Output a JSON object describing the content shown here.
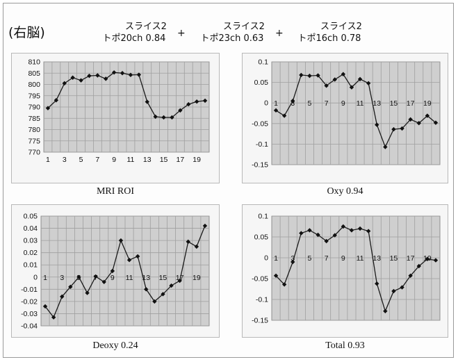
{
  "header": {
    "hemisphere": "(右脳)",
    "combos": [
      {
        "line1": "スライス2",
        "line2": "トポ20ch 0.84"
      },
      {
        "line1": "スライス2",
        "line2": "トポ23ch 0.63"
      },
      {
        "line1": "スライス2",
        "line2": "トポ16ch 0.78"
      }
    ],
    "plus": "+"
  },
  "chart_data": [
    {
      "type": "line",
      "title": "MRI ROI",
      "x": [
        1,
        2,
        3,
        4,
        5,
        6,
        7,
        8,
        9,
        10,
        11,
        12,
        13,
        14,
        15,
        16,
        17,
        18,
        19,
        20
      ],
      "values": [
        789.5,
        793,
        800.5,
        803,
        801.8,
        803.8,
        804,
        802.5,
        805.3,
        805,
        804.2,
        804.3,
        792.3,
        785.7,
        785.4,
        785.4,
        788.5,
        791.2,
        792.4,
        792.8
      ],
      "ylim": [
        770,
        810
      ],
      "yticks": [
        770,
        775,
        780,
        785,
        790,
        795,
        800,
        805,
        810
      ],
      "xticks": [
        1,
        3,
        5,
        7,
        9,
        11,
        13,
        15,
        17,
        19
      ],
      "xtick_position": "bottom",
      "grid": true
    },
    {
      "type": "line",
      "title": "Oxy 0.94",
      "x": [
        1,
        2,
        3,
        4,
        5,
        6,
        7,
        8,
        9,
        10,
        11,
        12,
        13,
        14,
        15,
        16,
        17,
        18,
        19,
        20
      ],
      "values": [
        -0.018,
        -0.031,
        0.005,
        0.068,
        0.066,
        0.067,
        0.042,
        0.057,
        0.07,
        0.038,
        0.058,
        0.048,
        -0.053,
        -0.107,
        -0.064,
        -0.062,
        -0.04,
        -0.049,
        -0.031,
        -0.048
      ],
      "ylim": [
        -0.15,
        0.1
      ],
      "yticks": [
        -0.15,
        -0.1,
        -0.05,
        0,
        0.05,
        0.1
      ],
      "xticks": [
        1,
        3,
        5,
        7,
        9,
        11,
        13,
        15,
        17,
        19
      ],
      "xtick_position": "zero",
      "grid": true
    },
    {
      "type": "line",
      "title": "Deoxy  0.24",
      "x": [
        1,
        2,
        3,
        4,
        5,
        6,
        7,
        8,
        9,
        10,
        11,
        12,
        13,
        14,
        15,
        16,
        17,
        18,
        19,
        20
      ],
      "values": [
        -0.024,
        -0.033,
        -0.016,
        -0.008,
        0,
        -0.013,
        0.0005,
        -0.004,
        0.005,
        0.03,
        0.014,
        0.017,
        -0.01,
        -0.02,
        -0.014,
        -0.007,
        -0.003,
        0.029,
        0.025,
        0.042
      ],
      "ylim": [
        -0.04,
        0.05
      ],
      "yticks": [
        -0.04,
        -0.03,
        -0.02,
        -0.01,
        0,
        0.01,
        0.02,
        0.03,
        0.04,
        0.05
      ],
      "xticks": [
        1,
        3,
        5,
        7,
        9,
        11,
        13,
        15,
        17,
        19
      ],
      "xtick_position": "zero",
      "grid": true
    },
    {
      "type": "line",
      "title": "Total 0.93",
      "x": [
        1,
        2,
        3,
        4,
        5,
        6,
        7,
        8,
        9,
        10,
        11,
        12,
        13,
        14,
        15,
        16,
        17,
        18,
        19,
        20
      ],
      "values": [
        -0.043,
        -0.064,
        -0.01,
        0.059,
        0.066,
        0.055,
        0.04,
        0.054,
        0.075,
        0.066,
        0.07,
        0.064,
        -0.062,
        -0.128,
        -0.08,
        -0.071,
        -0.043,
        -0.02,
        -0.003,
        -0.006
      ],
      "ylim": [
        -0.15,
        0.1
      ],
      "yticks": [
        -0.15,
        -0.1,
        -0.05,
        0,
        0.05,
        0.1
      ],
      "xticks": [
        1,
        3,
        5,
        7,
        9,
        11,
        13,
        15,
        17,
        19
      ],
      "xtick_position": "zero",
      "grid": true
    }
  ]
}
